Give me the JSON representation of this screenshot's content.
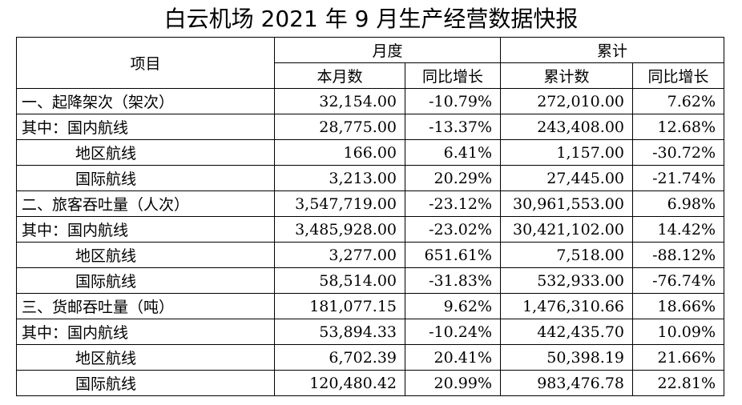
{
  "title": "白云机场 2021 年 9 月生产经营数据快报",
  "headers": {
    "item": "项目",
    "month_group": "月度",
    "cumulative_group": "累计",
    "month_value": "本月数",
    "month_yoy": "同比增长",
    "cum_value": "累计数",
    "cum_yoy": "同比增长"
  },
  "rows": [
    {
      "label": "一、起降架次（架次）",
      "month": "32,154.00",
      "month_yoy": "-10.79%",
      "cum": "272,010.00",
      "cum_yoy": "7.62%"
    },
    {
      "label": "其中：国内航线",
      "month": "28,775.00",
      "month_yoy": "-13.37%",
      "cum": "243,408.00",
      "cum_yoy": "12.68%"
    },
    {
      "label": "地区航线",
      "month": "166.00",
      "month_yoy": "6.41%",
      "cum": "1,157.00",
      "cum_yoy": "-30.72%"
    },
    {
      "label": "国际航线",
      "month": "3,213.00",
      "month_yoy": "20.29%",
      "cum": "27,445.00",
      "cum_yoy": "-21.74%"
    },
    {
      "label": "二、旅客吞吐量（人次）",
      "month": "3,547,719.00",
      "month_yoy": "-23.12%",
      "cum": "30,961,553.00",
      "cum_yoy": "6.98%"
    },
    {
      "label": "其中：国内航线",
      "month": "3,485,928.00",
      "month_yoy": "-23.02%",
      "cum": "30,421,102.00",
      "cum_yoy": "14.42%"
    },
    {
      "label": "地区航线",
      "month": "3,277.00",
      "month_yoy": "651.61%",
      "cum": "7,518.00",
      "cum_yoy": "-88.12%"
    },
    {
      "label": "国际航线",
      "month": "58,514.00",
      "month_yoy": "-31.83%",
      "cum": "532,933.00",
      "cum_yoy": "-76.74%"
    },
    {
      "label": "三、货邮吞吐量（吨）",
      "month": "181,077.15",
      "month_yoy": "9.62%",
      "cum": "1,476,310.66",
      "cum_yoy": "18.66%"
    },
    {
      "label": "其中：国内航线",
      "month": "53,894.33",
      "month_yoy": "-10.24%",
      "cum": "442,435.70",
      "cum_yoy": "10.09%"
    },
    {
      "label": "地区航线",
      "month": "6,702.39",
      "month_yoy": "20.41%",
      "cum": "50,398.19",
      "cum_yoy": "21.66%"
    },
    {
      "label": "国际航线",
      "month": "120,480.42",
      "month_yoy": "20.99%",
      "cum": "983,476.78",
      "cum_yoy": "22.81%"
    }
  ]
}
